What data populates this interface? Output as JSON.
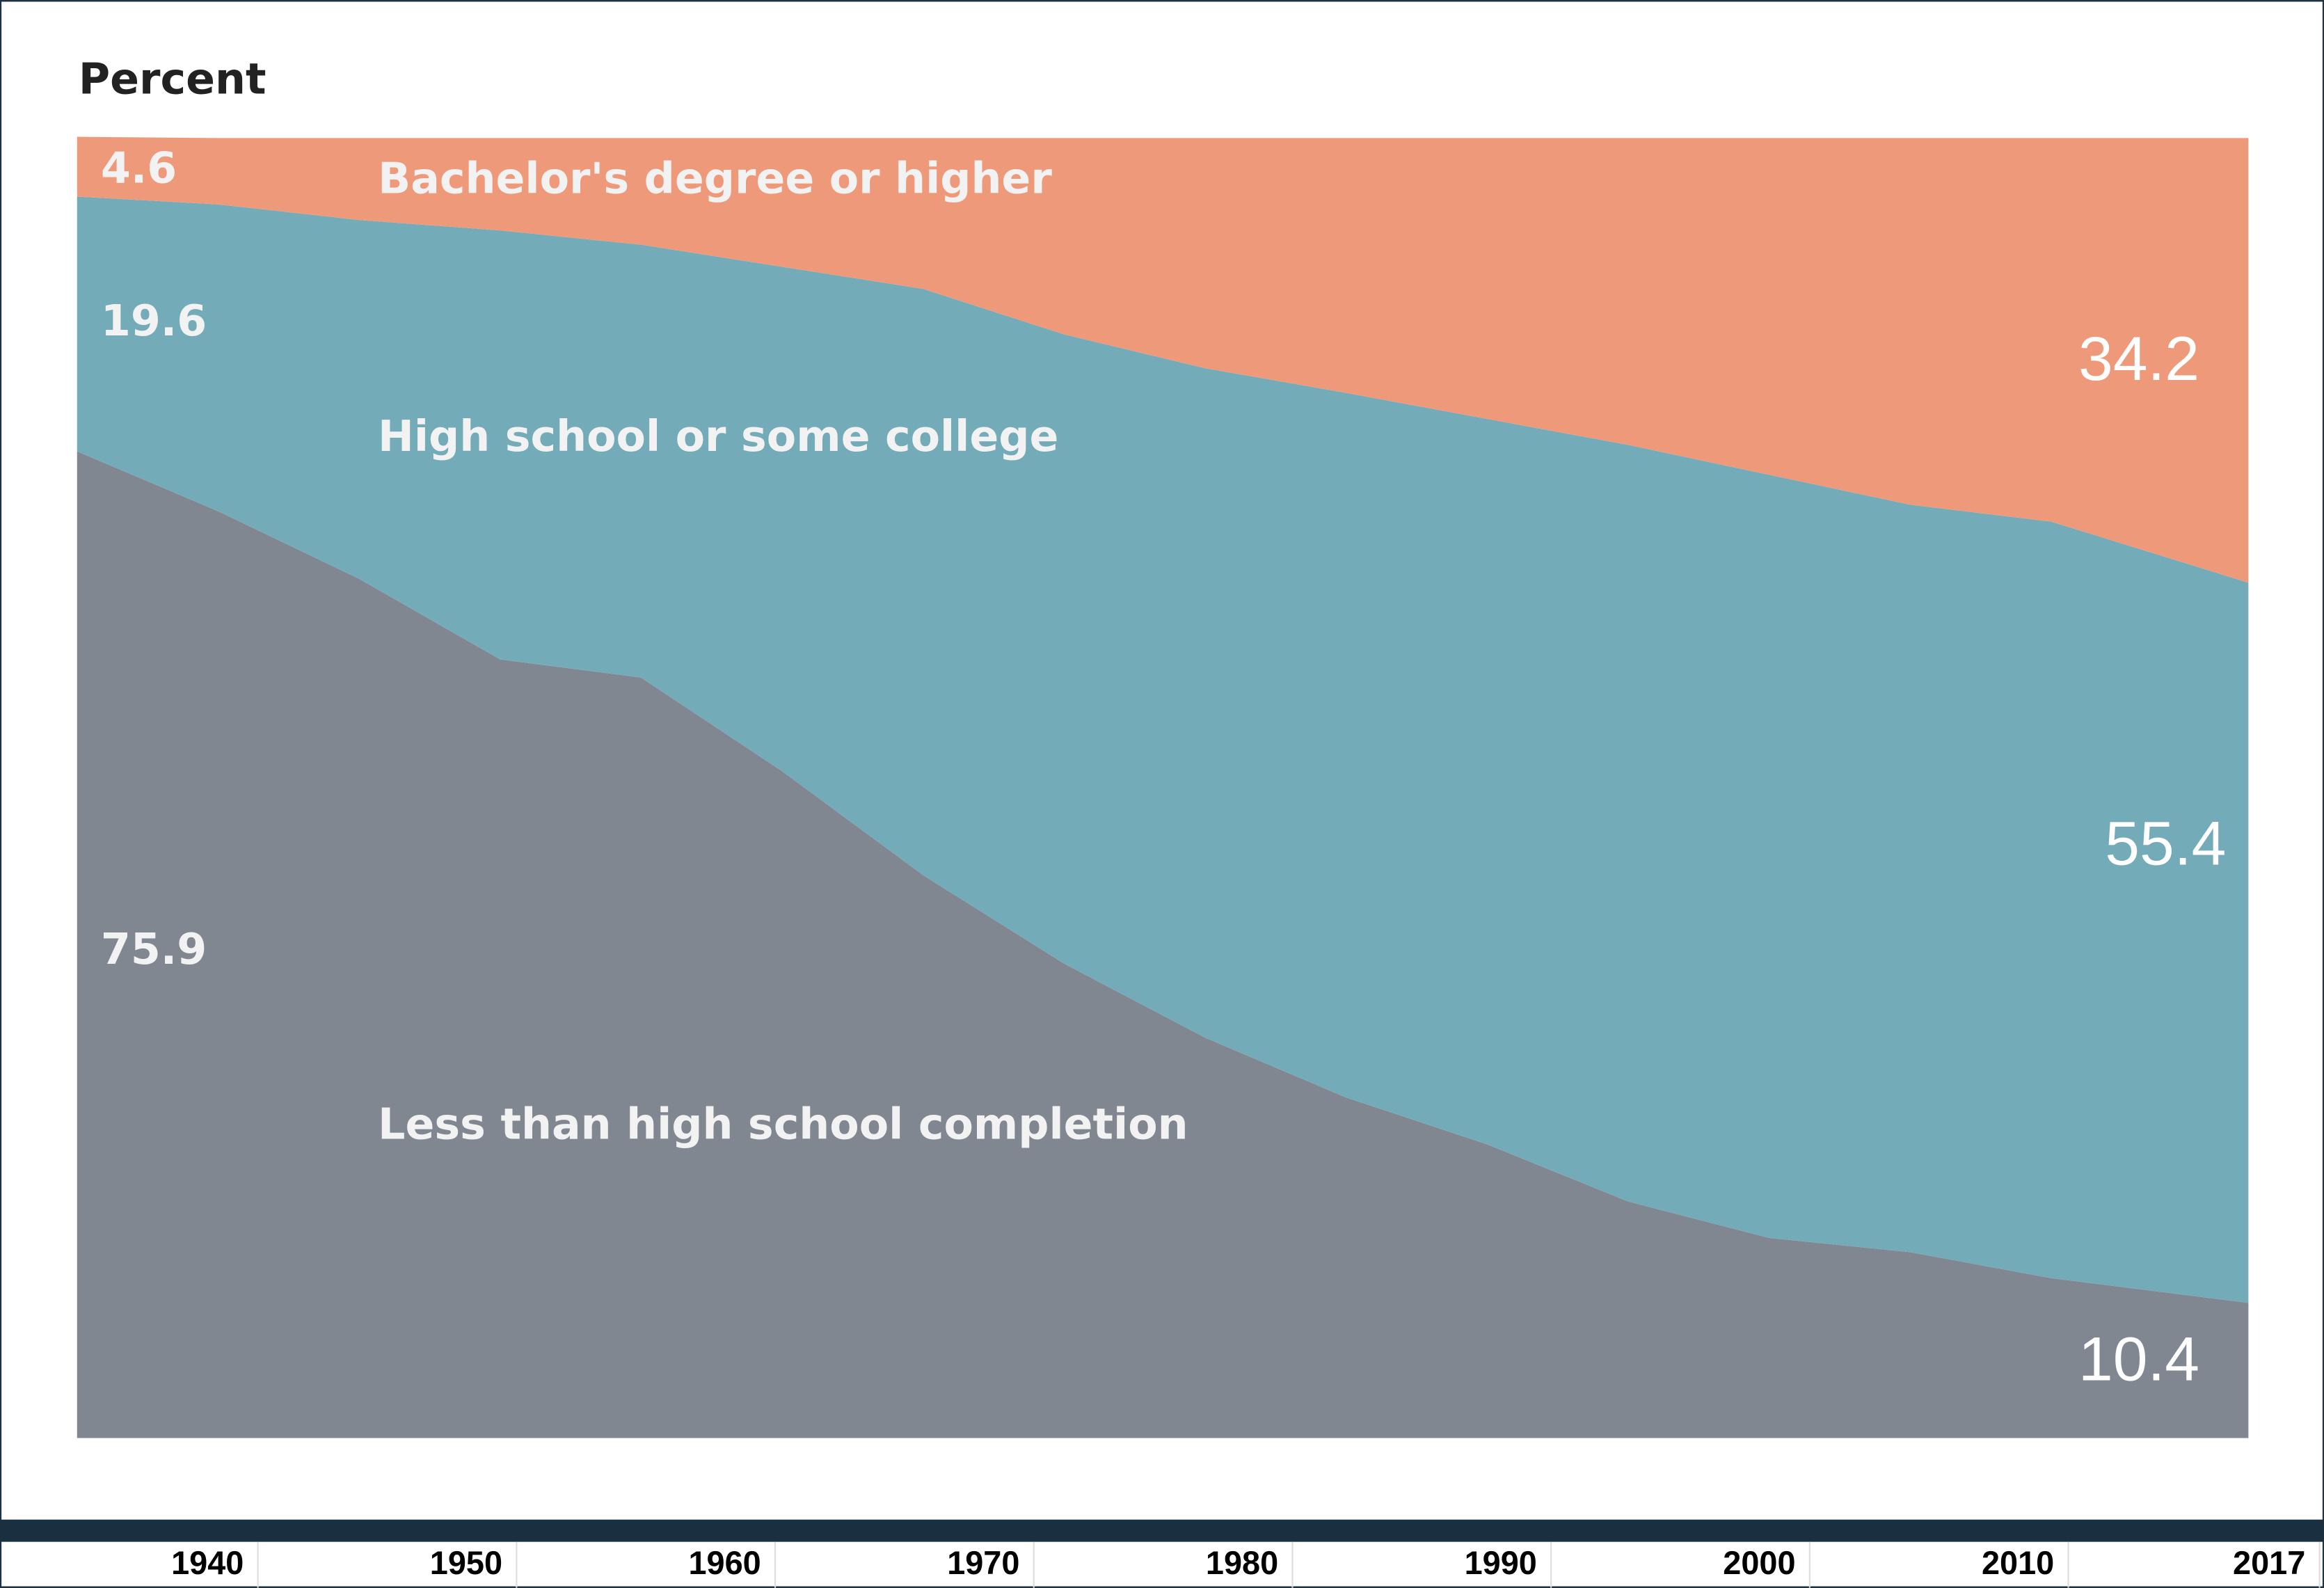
{
  "chart_data": {
    "type": "stacked-area",
    "y_label": "Percent",
    "x": [
      1940,
      1945,
      1950,
      1955,
      1960,
      1965,
      1970,
      1975,
      1980,
      1985,
      1990,
      1995,
      2000,
      2005,
      2010,
      2017
    ],
    "series": [
      {
        "name": "Less than high school completion",
        "color": "#818791",
        "values": [
          75.9,
          71.3,
          66.1,
          59.9,
          58.5,
          51.3,
          43.3,
          36.5,
          30.8,
          26.2,
          22.6,
          18.2,
          15.4,
          14.3,
          12.3,
          10.4
        ]
      },
      {
        "name": "High school or some college",
        "color": "#74abb8",
        "values": [
          19.6,
          23.6,
          27.6,
          33.0,
          33.3,
          38.8,
          45.1,
          48.4,
          51.5,
          54.2,
          55.8,
          58.2,
          58.7,
          57.5,
          58.2,
          55.4
        ]
      },
      {
        "name": "Bachelor's degree or higher",
        "color": "#ee9a7a",
        "values": [
          4.6,
          5.1,
          6.3,
          7.1,
          8.2,
          9.9,
          11.6,
          15.1,
          17.7,
          19.6,
          21.6,
          23.6,
          25.9,
          28.2,
          29.5,
          34.2
        ]
      }
    ],
    "xlim": [
      1940,
      2017
    ],
    "ylim": [
      0,
      100
    ],
    "xticks": [
      1940,
      1950,
      1960,
      1970,
      1980,
      1990,
      2000,
      2010,
      2017
    ]
  }
}
